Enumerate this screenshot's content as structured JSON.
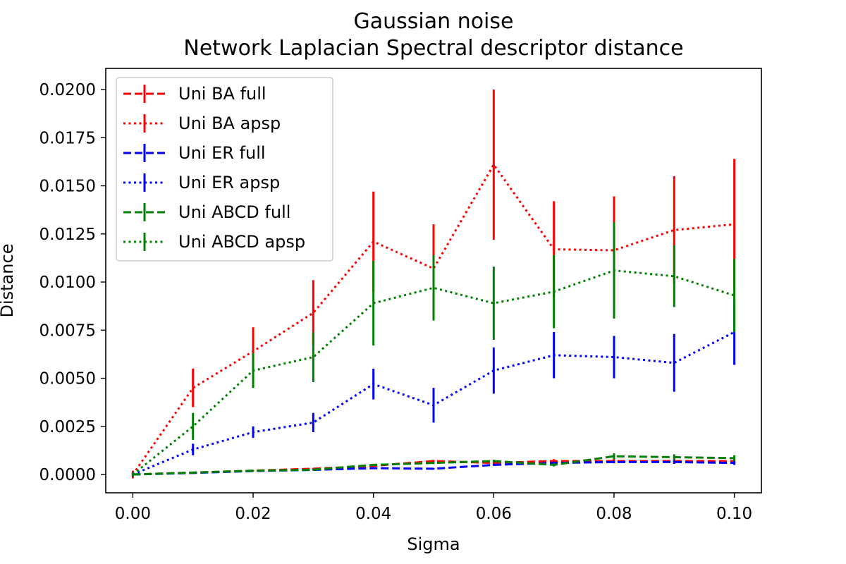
{
  "chart_data": {
    "type": "line",
    "title_line1": "Gaussian noise",
    "title_line2": "Network Laplacian Spectral descriptor distance",
    "xlabel": "Sigma",
    "ylabel": "Distance",
    "xlim": [
      -0.0045,
      0.1045
    ],
    "ylim": [
      -0.00095,
      0.0211
    ],
    "xticks": [
      0.0,
      0.02,
      0.04,
      0.06,
      0.08,
      0.1
    ],
    "xtick_labels": [
      "0.00",
      "0.02",
      "0.04",
      "0.06",
      "0.08",
      "0.10"
    ],
    "yticks": [
      0.0,
      0.0025,
      0.005,
      0.0075,
      0.01,
      0.0125,
      0.015,
      0.0175,
      0.02
    ],
    "ytick_labels": [
      "0.0000",
      "0.0025",
      "0.0050",
      "0.0075",
      "0.0100",
      "0.0125",
      "0.0150",
      "0.0175",
      "0.0200"
    ],
    "grid": false,
    "legend_position": "top-left",
    "x": [
      0.0,
      0.01,
      0.02,
      0.03,
      0.04,
      0.05,
      0.06,
      0.07,
      0.08,
      0.09,
      0.1
    ],
    "series": [
      {
        "name": "Uni BA full",
        "color": "#ff0000",
        "linestyle": "dashed",
        "values": [
          0.0,
          0.0001,
          0.0002,
          0.0003,
          0.00045,
          0.0007,
          0.0006,
          0.0007,
          0.0007,
          0.0007,
          0.0007
        ],
        "errors": [
          0.0,
          2e-05,
          3e-05,
          4e-05,
          5e-05,
          6e-05,
          7e-05,
          0.0001,
          0.00012,
          0.00012,
          0.00012
        ]
      },
      {
        "name": "Uni BA apsp",
        "color": "#ff0000",
        "linestyle": "dotted",
        "values": [
          0.0,
          0.0045,
          0.0064,
          0.0084,
          0.0121,
          0.0107,
          0.0161,
          0.0117,
          0.01165,
          0.0127,
          0.013
        ],
        "errors": [
          0.0002,
          0.001,
          0.00125,
          0.0017,
          0.0026,
          0.0023,
          0.0039,
          0.0025,
          0.0028,
          0.0028,
          0.0034
        ]
      },
      {
        "name": "Uni ER full",
        "color": "#0000ff",
        "linestyle": "dashed",
        "values": [
          0.0,
          8e-05,
          0.00018,
          0.00024,
          0.00033,
          0.0003,
          0.0005,
          0.0006,
          0.00065,
          0.00065,
          0.0006
        ],
        "errors": [
          0.0,
          1e-05,
          2e-05,
          3e-05,
          4e-05,
          4e-05,
          5e-05,
          6e-05,
          6e-05,
          0.0001,
          0.0001
        ]
      },
      {
        "name": "Uni ER apsp",
        "color": "#0000ff",
        "linestyle": "dotted",
        "values": [
          0.0,
          0.0013,
          0.0022,
          0.0027,
          0.0047,
          0.0036,
          0.0054,
          0.0062,
          0.0061,
          0.0058,
          0.0074
        ],
        "errors": [
          0.0001,
          0.0003,
          0.0003,
          0.0005,
          0.0008,
          0.0009,
          0.0012,
          0.0012,
          0.0011,
          0.0015,
          0.0017
        ]
      },
      {
        "name": "Uni ABCD full",
        "color": "#008000",
        "linestyle": "dashed",
        "values": [
          0.0,
          0.0001,
          0.0002,
          0.00025,
          0.0005,
          0.0006,
          0.0007,
          0.0005,
          0.00095,
          0.0009,
          0.00085
        ],
        "errors": [
          0.0,
          2e-05,
          3e-05,
          4e-05,
          5e-05,
          6e-05,
          7e-05,
          8e-05,
          0.00015,
          0.00015,
          0.00015
        ]
      },
      {
        "name": "Uni ABCD apsp",
        "color": "#008000",
        "linestyle": "dotted",
        "values": [
          0.0,
          0.0025,
          0.0054,
          0.0061,
          0.0089,
          0.0097,
          0.0089,
          0.0095,
          0.0106,
          0.0103,
          0.0093
        ],
        "errors": [
          0.0001,
          0.0007,
          0.0009,
          0.0013,
          0.0022,
          0.0017,
          0.0019,
          0.0019,
          0.0025,
          0.0016,
          0.0019
        ]
      }
    ]
  }
}
